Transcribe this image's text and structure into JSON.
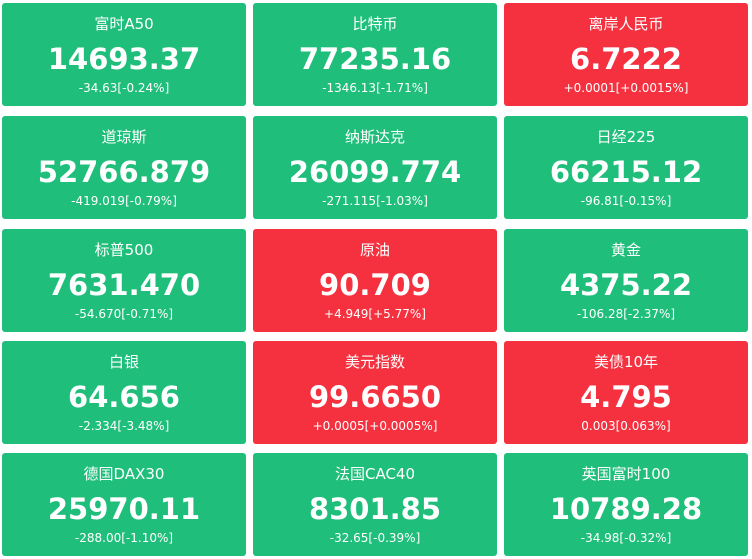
{
  "tiles": [
    {
      "name": "富时A50",
      "value": "14693.37",
      "change": "-34.63[-0.24%]",
      "color": "#1fbf7b"
    },
    {
      "name": "比特币",
      "value": "77235.16",
      "change": "-1346.13[-1.71%]",
      "color": "#1fbf7b"
    },
    {
      "name": "离岸人民币",
      "value": "6.7222",
      "change": "+0.0001[+0.0015%]",
      "color": "#f5313f"
    },
    {
      "name": "道琼斯",
      "value": "52766.879",
      "change": "-419.019[-0.79%]",
      "color": "#1fbf7b"
    },
    {
      "name": "纳斯达克",
      "value": "26099.774",
      "change": "-271.115[-1.03%]",
      "color": "#1fbf7b"
    },
    {
      "name": "日经225",
      "value": "66215.12",
      "change": "-96.81[-0.15%]",
      "color": "#1fbf7b"
    },
    {
      "name": "标普500",
      "value": "7631.470",
      "change": "-54.670[-0.71%]",
      "color": "#1fbf7b"
    },
    {
      "name": "原油",
      "value": "90.709",
      "change": "+4.949[+5.77%]",
      "color": "#f5313f"
    },
    {
      "name": "黄金",
      "value": "4375.22",
      "change": "-106.28[-2.37%]",
      "color": "#1fbf7b"
    },
    {
      "name": "白银",
      "value": "64.656",
      "change": "-2.334[-3.48%]",
      "color": "#1fbf7b"
    },
    {
      "name": "美元指数",
      "value": "99.6650",
      "change": "+0.0005[+0.0005%]",
      "color": "#f5313f"
    },
    {
      "name": "美债10年",
      "value": "4.795",
      "change": "0.003[0.063%]",
      "color": "#f5313f"
    },
    {
      "name": "德国DAX30",
      "value": "25970.11",
      "change": "-288.00[-1.10%]",
      "color": "#1fbf7b"
    },
    {
      "name": "法国CAC40",
      "value": "8301.85",
      "change": "-32.65[-0.39%]",
      "color": "#1fbf7b"
    },
    {
      "name": "英国富时100",
      "value": "10789.28",
      "change": "-34.98[-0.32%]",
      "color": "#1fbf7b"
    }
  ]
}
